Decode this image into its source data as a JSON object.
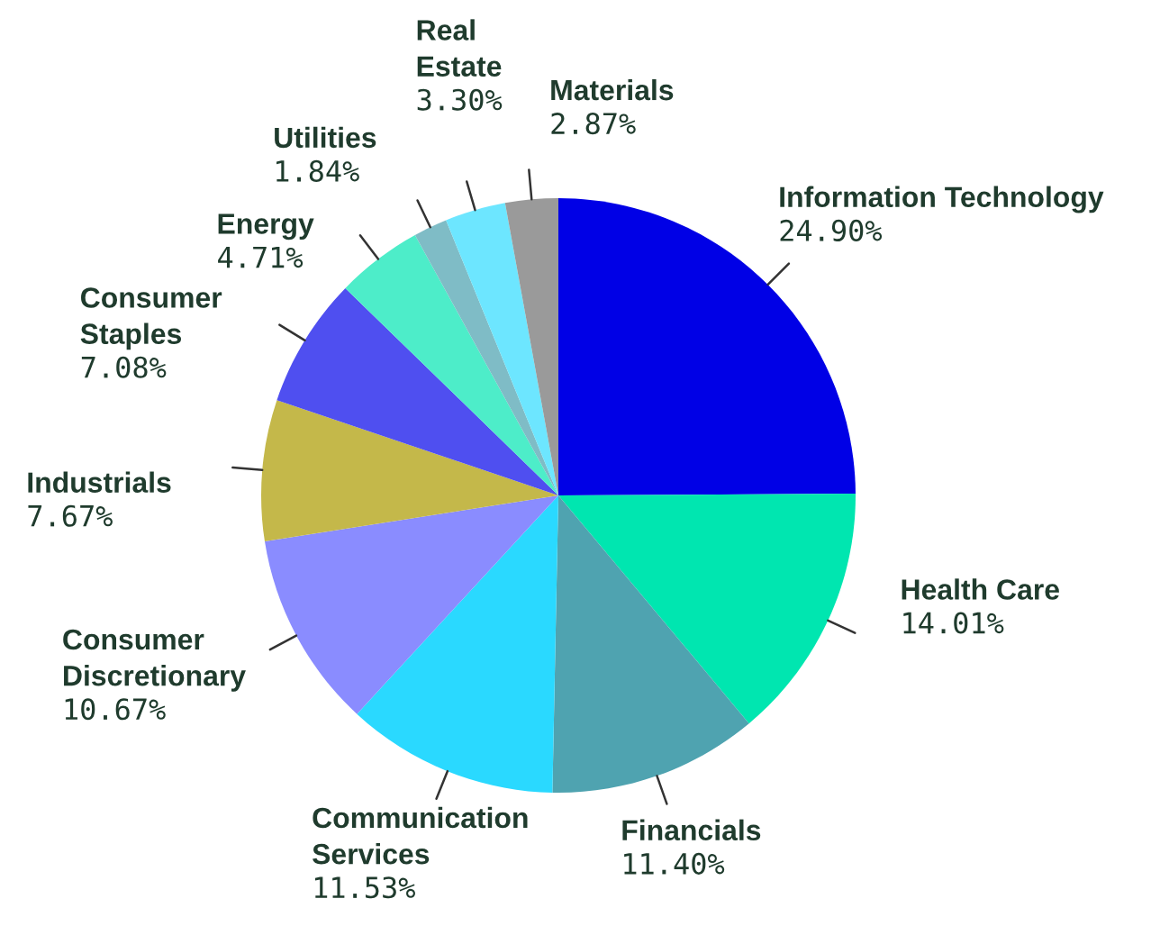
{
  "chart_data": {
    "type": "pie",
    "categories": [
      "Information Technology",
      "Health Care",
      "Financials",
      "Communication\nServices",
      "Consumer\nDiscretionary",
      "Industrials",
      "Consumer\nStaples",
      "Energy",
      "Utilities",
      "Real\nEstate",
      "Materials"
    ],
    "values": [
      24.9,
      14.01,
      11.4,
      11.53,
      10.67,
      7.67,
      7.08,
      4.71,
      1.84,
      3.3,
      2.87
    ],
    "value_labels": [
      "24.90%",
      "14.01%",
      "11.40%",
      "11.53%",
      "10.67%",
      "7.67%",
      "7.08%",
      "4.71%",
      "1.84%",
      "3.30%",
      "2.87%"
    ],
    "colors": [
      "#0000e6",
      "#00e6b0",
      "#4fa3b0",
      "#2ad9ff",
      "#8a8cff",
      "#c4b84a",
      "#4f4ff0",
      "#4dedc9",
      "#7fbcc6",
      "#6de6ff",
      "#9a9a9a"
    ],
    "legend": false
  }
}
